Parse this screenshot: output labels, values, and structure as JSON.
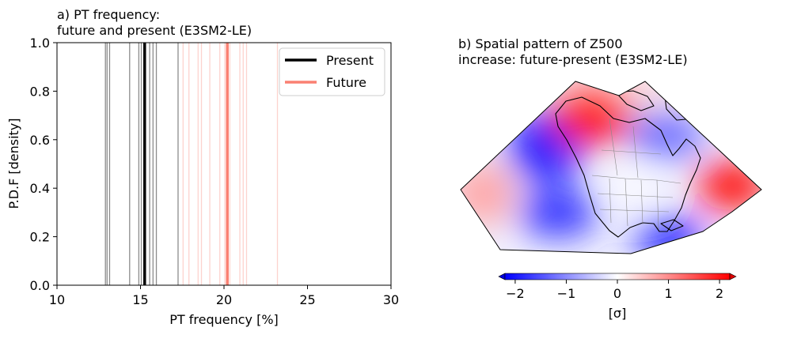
{
  "chart_data": [
    {
      "type": "line",
      "title_line1": "a) PT frequency:",
      "title_line2": "future and present (E3SM2-LE)",
      "xlabel": "PT frequency [%]",
      "ylabel": "P.D.F [density]",
      "xlim": [
        10,
        30
      ],
      "ylim": [
        0,
        1
      ],
      "xticks": [
        "10",
        "15",
        "20",
        "25",
        "30"
      ],
      "yticks": [
        "0.0",
        "0.2",
        "0.4",
        "0.6",
        "0.8",
        "1.0"
      ],
      "legend_position": "top-right",
      "series": [
        {
          "name": "Present",
          "color": "#000000",
          "mean": 15.25,
          "members": [
            12.9,
            13.0,
            13.15,
            14.35,
            14.9,
            15.05,
            15.3,
            15.55,
            15.75,
            15.95,
            17.25
          ]
        },
        {
          "name": "Future",
          "color": "#fa8072",
          "mean": 20.2,
          "members": [
            17.55,
            17.9,
            18.45,
            18.65,
            19.15,
            19.75,
            20.05,
            20.15,
            20.35,
            20.95,
            21.15,
            21.35,
            23.2
          ]
        }
      ]
    },
    {
      "type": "heatmap",
      "title_line1": "b) Spatial pattern of Z500",
      "title_line2": "increase: future-present (E3SM2-LE)",
      "colormap": "bwr",
      "colorbar_label": "[σ]",
      "colorbar_range": [
        -2.2,
        2.2
      ],
      "colorbar_ticks": [
        "−2",
        "−1",
        "0",
        "1",
        "2"
      ],
      "colorbar_tick_values": [
        -2,
        -1,
        0,
        1,
        2
      ],
      "anomalies": [
        {
          "where": "northeast Pacific / Gulf of Alaska",
          "sign": "negative",
          "value": -1.8
        },
        {
          "where": "northwest Canada",
          "sign": "positive",
          "value": 1.8
        },
        {
          "where": "Hudson Bay / Labrador Sea",
          "sign": "negative",
          "value": -1.2
        },
        {
          "where": "subtropical eastern Pacific",
          "sign": "negative",
          "value": -1.7
        },
        {
          "where": "western Atlantic",
          "sign": "positive",
          "value": 2.1
        },
        {
          "where": "southeast US / Gulf of Mexico",
          "sign": "negative",
          "value": -2.2
        },
        {
          "where": "far west edge",
          "sign": "positive",
          "value": 0.8
        },
        {
          "where": "Arctic",
          "sign": "positive",
          "value": 0.9
        }
      ]
    }
  ]
}
